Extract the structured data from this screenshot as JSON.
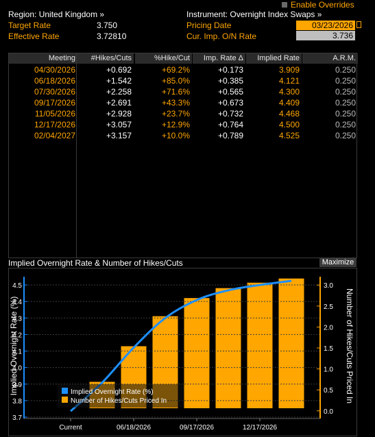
{
  "header": {
    "region_label": "Region: United Kingdom »",
    "target_rate_label": "Target Rate",
    "target_rate_value": "3.750",
    "effective_rate_label": "Effective Rate",
    "effective_rate_value": "3.72810",
    "instrument_label": "Instrument: Overnight Index Swaps »",
    "pricing_date_label": "Pricing Date",
    "pricing_date_value": "03/23/2026",
    "cur_imp_label": "Cur. Imp. O/N Rate",
    "cur_imp_value": "3.736",
    "enable_overrides_label": "Enable Overrides"
  },
  "table": {
    "columns": [
      "Meeting",
      "#Hikes/Cuts",
      "%Hike/Cut",
      "Imp. Rate Δ",
      "Implied Rate",
      "A.R.M."
    ],
    "rows": [
      {
        "meeting": "04/30/2026",
        "hikes": "+0.692",
        "pct": "+69.2%",
        "delta": "+0.173",
        "implied": "3.909",
        "arm": "0.250"
      },
      {
        "meeting": "06/18/2026",
        "hikes": "+1.542",
        "pct": "+85.0%",
        "delta": "+0.385",
        "implied": "4.121",
        "arm": "0.250"
      },
      {
        "meeting": "07/30/2026",
        "hikes": "+2.258",
        "pct": "+71.6%",
        "delta": "+0.565",
        "implied": "4.300",
        "arm": "0.250"
      },
      {
        "meeting": "09/17/2026",
        "hikes": "+2.691",
        "pct": "+43.3%",
        "delta": "+0.673",
        "implied": "4.409",
        "arm": "0.250"
      },
      {
        "meeting": "11/05/2026",
        "hikes": "+2.928",
        "pct": "+23.7%",
        "delta": "+0.732",
        "implied": "4.468",
        "arm": "0.250"
      },
      {
        "meeting": "12/17/2026",
        "hikes": "+3.057",
        "pct": "+12.9%",
        "delta": "+0.764",
        "implied": "4.500",
        "arm": "0.250"
      },
      {
        "meeting": "02/04/2027",
        "hikes": "+3.157",
        "pct": "+10.0%",
        "delta": "+0.789",
        "implied": "4.525",
        "arm": "0.250"
      }
    ]
  },
  "chart_panel": {
    "title": "Implied Overnight Rate & Number of Hikes/Cuts",
    "maximize_label": "Maximize"
  },
  "chart_data": {
    "type": "bar",
    "title": "Implied Overnight Rate & Number of Hikes/Cuts",
    "ylabel": "Implied Overnight Rate (%)",
    "y2label": "Number of Hikes/Cuts Priced In",
    "ylim": [
      3.7,
      4.55
    ],
    "y2lim": [
      -0.15,
      3.2
    ],
    "y_ticks": [
      "3.7",
      "3.8",
      "3.9",
      "4.0",
      "4.1",
      "4.2",
      "4.3",
      "4.4",
      "4.5"
    ],
    "y2_ticks": [
      "0.0",
      "0.5",
      "1.0",
      "1.5",
      "2.0",
      "2.5",
      "3.0"
    ],
    "x_tick_labels": [
      "Current",
      "06/18/2026",
      "09/17/2026",
      "12/17/2026"
    ],
    "categories": [
      "Current",
      "04/30/2026",
      "06/18/2026",
      "07/30/2026",
      "09/17/2026",
      "11/05/2026",
      "12/17/2026",
      "02/04/2027"
    ],
    "series": [
      {
        "name": "Implied Overnight Rate (%)",
        "type": "line",
        "color": "#1e90ff",
        "values": [
          3.736,
          3.909,
          4.121,
          4.3,
          4.409,
          4.468,
          4.5,
          4.525
        ]
      },
      {
        "name": "Number of Hikes/Cuts Priced In",
        "type": "bar",
        "color": "#ffa600",
        "values": [
          null,
          0.692,
          1.542,
          2.258,
          2.691,
          2.928,
          3.057,
          3.157
        ]
      }
    ],
    "legend_position": "bottom-left",
    "colors": {
      "accent": "#ffa600",
      "line": "#1e90ff",
      "axis": "#1e90ff"
    }
  }
}
